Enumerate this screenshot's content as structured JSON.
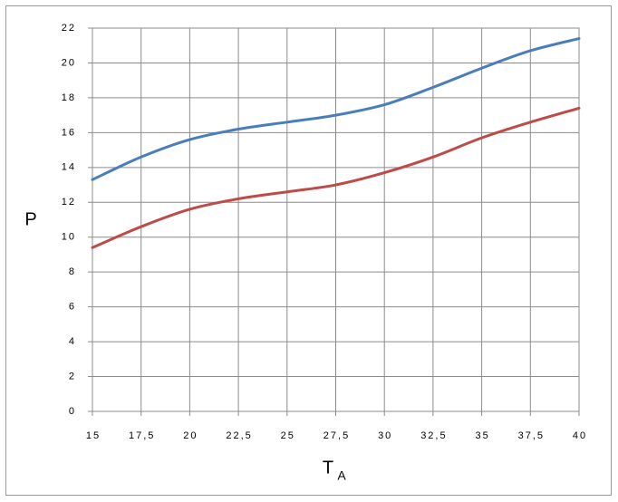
{
  "chart_data": {
    "type": "line",
    "y_label": "P",
    "x_label": "T",
    "x_label_subscript": "A",
    "x": [
      15,
      17.5,
      20,
      22.5,
      25,
      27.5,
      30,
      32.5,
      35,
      37.5,
      40
    ],
    "series": [
      {
        "color": "#4a7ebb",
        "values": [
          13.3,
          14.6,
          15.6,
          16.2,
          16.6,
          17.0,
          17.6,
          18.6,
          19.7,
          20.7,
          21.4
        ]
      },
      {
        "color": "#be4b48",
        "values": [
          9.4,
          10.6,
          11.6,
          12.2,
          12.6,
          13.0,
          13.7,
          14.6,
          15.7,
          16.6,
          17.4
        ]
      }
    ],
    "xlim": [
      15,
      40
    ],
    "xticks": [
      15,
      {
        "value": 17.5,
        "label": "17,5"
      },
      20,
      {
        "value": 22.5,
        "label": "22,5"
      },
      25,
      {
        "value": 27.5,
        "label": "27,5"
      },
      30,
      {
        "value": 32.5,
        "label": "32,5"
      },
      35,
      {
        "value": 37.5,
        "label": "37,5"
      },
      40
    ],
    "ylim": [
      0,
      22
    ],
    "yticks": [
      0,
      2,
      4,
      6,
      8,
      10,
      12,
      14,
      16,
      18,
      20,
      22
    ],
    "grid": true
  }
}
